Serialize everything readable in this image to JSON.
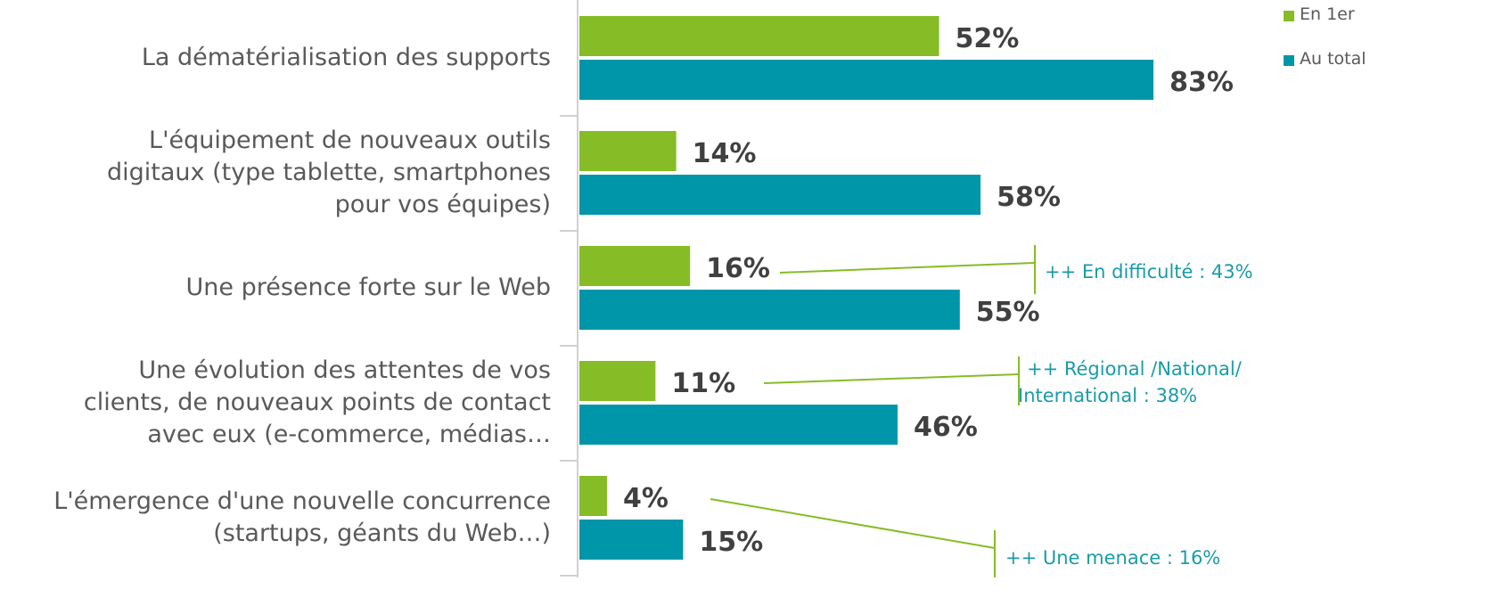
{
  "chart_data": {
    "type": "bar",
    "orientation": "horizontal",
    "categories": [
      "La dématérialisation des supports",
      "L'équipement de nouveaux outils\ndigitaux (type tablette, smartphones\npour vos équipes)",
      "Une présence forte sur le Web",
      "Une évolution des attentes de vos\nclients, de nouveaux points de contact\navec eux (e-commerce, médias…",
      "L'émergence d'une nouvelle concurrence\n(startups, géants du Web…)"
    ],
    "series": [
      {
        "name": "En 1er",
        "color": "#86bc25",
        "values": [
          52,
          14,
          16,
          11,
          4
        ],
        "value_labels": [
          "52%",
          "14%",
          "16%",
          "11%",
          "4%"
        ]
      },
      {
        "name": "Au total",
        "color": "#0096a9",
        "values": [
          83,
          58,
          55,
          46,
          15
        ],
        "value_labels": [
          "83%",
          "58%",
          "55%",
          "46%",
          "15%"
        ]
      }
    ],
    "legend": "top-right",
    "annotations": [
      {
        "text": "++ En difficulté : 43%",
        "category": 2
      },
      {
        "text": "++ Régional /National/\nInternational : 38%",
        "category": 3
      },
      {
        "text": "++ Une menace : 16%",
        "category": 4
      }
    ]
  }
}
